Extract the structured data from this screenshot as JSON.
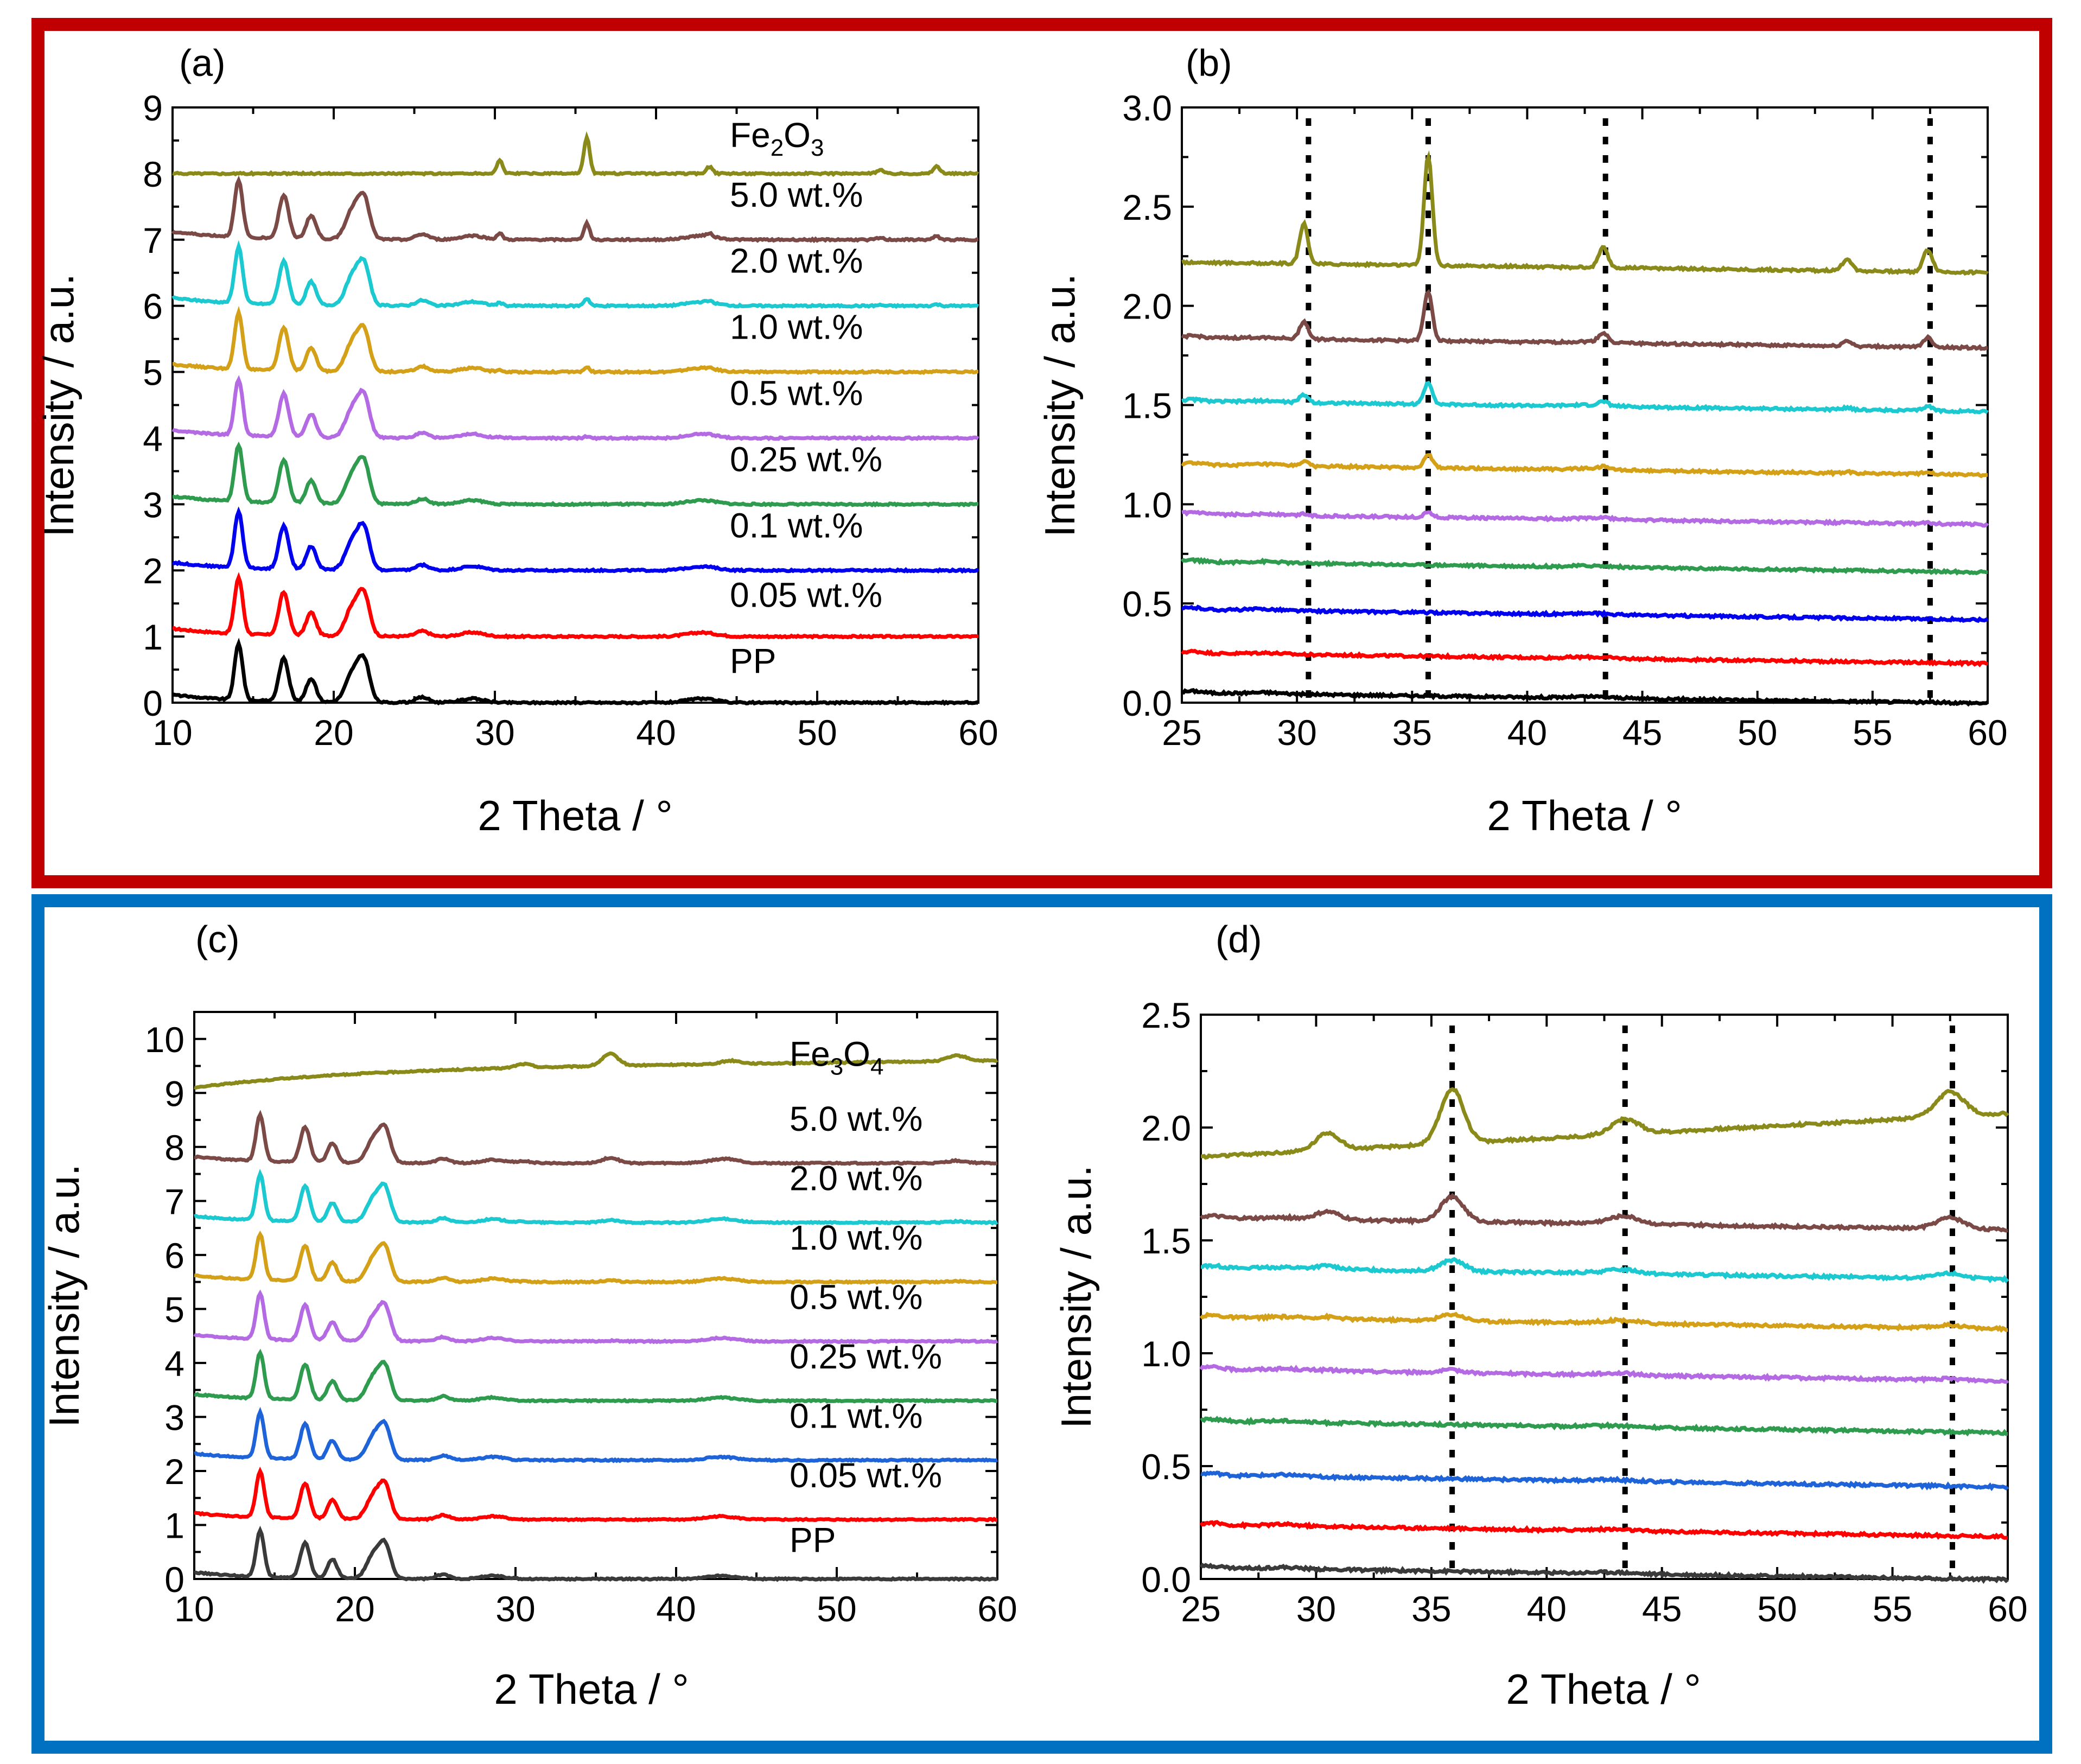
{
  "colors": {
    "frame_top": "#C00000",
    "frame_bottom": "#0070C0",
    "pp": "#000000",
    "wt_0_05": "#FF0000",
    "wt_0_1": "#0000EE",
    "wt_0_25": "#2E9B4E",
    "wt_0_5": "#B36AE2",
    "wt_1_0": "#D4A017",
    "wt_2_0": "#1CC9D0",
    "wt_5_0": "#7B4A47",
    "oxide": "#8A8A1A",
    "pp_c": "#3A3A3A",
    "wt_0_1_c": "#1E64D8",
    "dots": "#000000"
  },
  "chart_data": [
    {
      "panel": "(a)",
      "type": "line",
      "xlabel": "2 Theta / °",
      "ylabel": "Intensity / a.u.",
      "xlim": [
        10,
        60
      ],
      "ylim": [
        0,
        9
      ],
      "xticks": [
        "10",
        "20",
        "30",
        "40",
        "50",
        "60"
      ],
      "yticks": [
        "0",
        "1",
        "2",
        "3",
        "4",
        "5",
        "6",
        "7",
        "8",
        "9"
      ],
      "series": [
        {
          "name": "PP",
          "baseline": 0.0,
          "color_key": "pp",
          "label_y": 0.45
        },
        {
          "name": "0.05 wt.%",
          "baseline": 1.0,
          "color_key": "wt_0_05",
          "label_y": 1.45
        },
        {
          "name": "0.1 wt.%",
          "baseline": 2.0,
          "color_key": "wt_0_1",
          "label_y": 2.5
        },
        {
          "name": "0.25 wt.%",
          "baseline": 3.0,
          "color_key": "wt_0_25",
          "label_y": 3.5
        },
        {
          "name": "0.5 wt.%",
          "baseline": 4.0,
          "color_key": "wt_0_5",
          "label_y": 4.5
        },
        {
          "name": "1.0 wt.%",
          "baseline": 5.0,
          "color_key": "wt_1_0",
          "label_y": 5.5
        },
        {
          "name": "2.0 wt.%",
          "baseline": 6.0,
          "color_key": "wt_2_0",
          "label_y": 6.5
        },
        {
          "name": "5.0 wt.%",
          "baseline": 7.0,
          "color_key": "wt_5_0",
          "label_y": 7.5
        },
        {
          "name": "Fe2O3",
          "label_main": "Fe",
          "label_sub1": "2",
          "label_mid": "O",
          "label_sub2": "3",
          "baseline": 8.0,
          "color_key": "oxide",
          "label_y": 8.4
        }
      ]
    },
    {
      "panel": "(b)",
      "type": "line",
      "xlabel": "2 Theta / °",
      "ylabel": "Intensity / a.u.",
      "xlim": [
        25,
        60
      ],
      "ylim": [
        0,
        3.0
      ],
      "xticks": [
        "25",
        "30",
        "35",
        "40",
        "45",
        "50",
        "55",
        "60"
      ],
      "yticks": [
        "0.0",
        "0.5",
        "1.0",
        "1.5",
        "2.0",
        "2.5",
        "3.0"
      ],
      "dotted_lines_x": [
        30.5,
        35.7,
        43.4,
        57.5
      ],
      "series": [
        {
          "name": "PP",
          "baseline": 0.05,
          "color_key": "pp"
        },
        {
          "name": "0.05 wt.%",
          "baseline": 0.25,
          "color_key": "wt_0_05"
        },
        {
          "name": "0.1 wt.%",
          "baseline": 0.47,
          "color_key": "wt_0_1"
        },
        {
          "name": "0.25 wt.%",
          "baseline": 0.71,
          "color_key": "wt_0_25"
        },
        {
          "name": "0.5 wt.%",
          "baseline": 0.95,
          "color_key": "wt_0_5"
        },
        {
          "name": "1.0 wt.%",
          "baseline": 1.2,
          "color_key": "wt_1_0"
        },
        {
          "name": "2.0 wt.%",
          "baseline": 1.52,
          "color_key": "wt_2_0"
        },
        {
          "name": "5.0 wt.%",
          "baseline": 1.84,
          "color_key": "wt_5_0"
        },
        {
          "name": "Fe2O3",
          "baseline": 2.22,
          "color_key": "oxide"
        }
      ]
    },
    {
      "panel": "(c)",
      "type": "line",
      "xlabel": "2 Theta / °",
      "ylabel": "Intensity / a.u.",
      "xlim": [
        10,
        60
      ],
      "ylim": [
        0,
        10.5
      ],
      "xticks": [
        "10",
        "20",
        "30",
        "40",
        "50",
        "60"
      ],
      "yticks": [
        "0",
        "1",
        "2",
        "3",
        "4",
        "5",
        "6",
        "7",
        "8",
        "9",
        "10"
      ],
      "series": [
        {
          "name": "PP",
          "baseline": 0.0,
          "color_key": "pp_c",
          "label_y": 0.5
        },
        {
          "name": "0.05 wt.%",
          "baseline": 1.1,
          "color_key": "wt_0_05",
          "label_y": 1.7
        },
        {
          "name": "0.1 wt.%",
          "baseline": 2.2,
          "color_key": "wt_0_1_c",
          "label_y": 2.8
        },
        {
          "name": "0.25 wt.%",
          "baseline": 3.3,
          "color_key": "wt_0_25",
          "label_y": 3.9
        },
        {
          "name": "0.5 wt.%",
          "baseline": 4.4,
          "color_key": "wt_0_5",
          "label_y": 5.0
        },
        {
          "name": "1.0 wt.%",
          "baseline": 5.5,
          "color_key": "wt_1_0",
          "label_y": 6.1
        },
        {
          "name": "2.0 wt.%",
          "baseline": 6.6,
          "color_key": "wt_2_0",
          "label_y": 7.2
        },
        {
          "name": "5.0 wt.%",
          "baseline": 7.7,
          "color_key": "wt_5_0",
          "label_y": 8.3
        },
        {
          "name": "Fe3O4",
          "label_main": "Fe",
          "label_sub1": "3",
          "label_mid": "O",
          "label_sub2": "4",
          "baseline": 9.1,
          "color_key": "oxide",
          "label_y": 9.5
        }
      ]
    },
    {
      "panel": "(d)",
      "type": "line",
      "xlabel": "2 Theta / °",
      "ylabel": "Intensity / a.u.",
      "xlim": [
        25,
        60
      ],
      "ylim": [
        0,
        2.5
      ],
      "xticks": [
        "25",
        "30",
        "35",
        "40",
        "45",
        "50",
        "55",
        "60"
      ],
      "yticks": [
        "0.0",
        "0.5",
        "1.0",
        "1.5",
        "2.0",
        "2.5"
      ],
      "dotted_lines_x": [
        35.9,
        43.4,
        57.6
      ],
      "series": [
        {
          "name": "PP",
          "baseline": 0.05,
          "color_key": "pp_c"
        },
        {
          "name": "0.05 wt.%",
          "baseline": 0.24,
          "color_key": "wt_0_05"
        },
        {
          "name": "0.1 wt.%",
          "baseline": 0.46,
          "color_key": "wt_0_1_c"
        },
        {
          "name": "0.25 wt.%",
          "baseline": 0.7,
          "color_key": "wt_0_25"
        },
        {
          "name": "0.5 wt.%",
          "baseline": 0.93,
          "color_key": "wt_0_5"
        },
        {
          "name": "1.0 wt.%",
          "baseline": 1.16,
          "color_key": "wt_1_0"
        },
        {
          "name": "2.0 wt.%",
          "baseline": 1.38,
          "color_key": "wt_2_0"
        },
        {
          "name": "5.0 wt.%",
          "baseline": 1.6,
          "color_key": "wt_5_0"
        },
        {
          "name": "Fe3O4",
          "baseline": 1.87,
          "color_key": "oxide"
        }
      ]
    }
  ]
}
